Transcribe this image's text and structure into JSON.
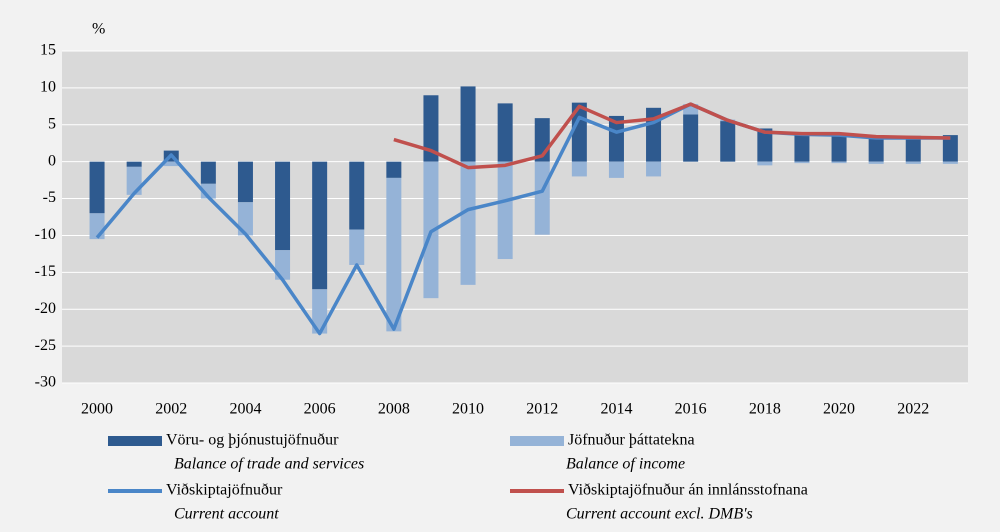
{
  "chart_data": {
    "type": "bar",
    "y_unit": "%",
    "categories": [
      2000,
      null,
      2002,
      null,
      2004,
      null,
      2006,
      null,
      2008,
      null,
      2010,
      null,
      2012,
      null,
      2014,
      null,
      2016,
      null,
      2018,
      null,
      2020,
      null,
      2022,
      null
    ],
    "ylim": [
      -30,
      15
    ],
    "yticks": [
      -30,
      -25,
      -20,
      -15,
      -10,
      -5,
      0,
      5,
      10,
      15
    ],
    "grid": true,
    "legend": "bottom",
    "stacked": true,
    "series": [
      {
        "name": "Vöru- og þjónustujöfnuður",
        "name_en": "Balance of trade and services",
        "type": "bar",
        "color": "#2e5a8f",
        "values": [
          -7,
          -0.7,
          1.5,
          -3,
          -5.5,
          -12,
          -17.3,
          -9.2,
          -2.2,
          9,
          10.2,
          7.9,
          5.9,
          8,
          6.2,
          7.3,
          6.4,
          5.5,
          4.5,
          3.8,
          3.7,
          3.5,
          3.5,
          3.6
        ]
      },
      {
        "name": "Jöfnuður þáttatekna",
        "name_en": "Balance of income",
        "type": "bar",
        "color": "#95b3d7",
        "values": [
          -3.5,
          -3.8,
          -0.6,
          -2,
          -4.5,
          -4,
          -6,
          -4.8,
          -20.8,
          -18.5,
          -16.7,
          -13.2,
          -9.9,
          -2,
          -2.2,
          -2,
          1.4,
          0.2,
          -0.5,
          -0.2,
          -0.2,
          -0.3,
          -0.3,
          -0.3
        ]
      },
      {
        "name": "Viðskiptajöfnuður",
        "name_en": "Current account",
        "type": "line",
        "color": "#4a86c8",
        "values": [
          -10.3,
          -4.3,
          0.9,
          -4.8,
          -9.8,
          -16,
          -23.3,
          -14,
          -22.7,
          -9.5,
          -6.5,
          -5.3,
          -4,
          6,
          4,
          5.3,
          7.8,
          5.6,
          4,
          3.7,
          3.6,
          3.2,
          3.2,
          3.2
        ]
      },
      {
        "name": "Viðskiptajöfnuður án innlánsstofnana",
        "name_en": "Current account excl. DMB's",
        "type": "line",
        "color": "#c0504d",
        "values": [
          null,
          null,
          null,
          null,
          null,
          null,
          null,
          null,
          3.0,
          1.5,
          -0.8,
          -0.5,
          0.8,
          7.5,
          5.3,
          5.8,
          7.8,
          5.6,
          4.0,
          3.8,
          3.8,
          3.4,
          3.3,
          3.2
        ]
      }
    ]
  }
}
